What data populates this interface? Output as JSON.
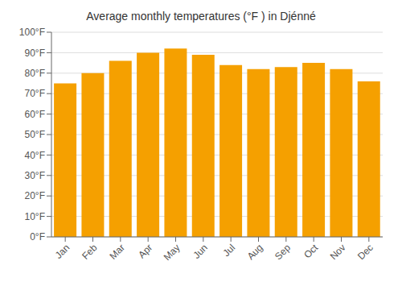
{
  "chart_data": {
    "type": "bar",
    "title": "Average monthly temperatures (°F ) in Djénné",
    "categories": [
      "Jan",
      "Feb",
      "Mar",
      "Apr",
      "May",
      "Jun",
      "Jul",
      "Aug",
      "Sep",
      "Oct",
      "Nov",
      "Dec"
    ],
    "values": [
      75,
      80,
      86,
      90,
      92,
      89,
      84,
      82,
      83,
      85,
      82,
      76
    ],
    "color": "#F5A000",
    "ylim": [
      0,
      100
    ],
    "yticks": [
      {
        "value": 0,
        "label": "0°F"
      },
      {
        "value": 10,
        "label": "10°F"
      },
      {
        "value": 20,
        "label": "20°F"
      },
      {
        "value": 30,
        "label": "30°F"
      },
      {
        "value": 40,
        "label": "40°F"
      },
      {
        "value": 50,
        "label": "50°F"
      },
      {
        "value": 60,
        "label": "60°F"
      },
      {
        "value": 70,
        "label": "70°F"
      },
      {
        "value": 80,
        "label": "80°F"
      },
      {
        "value": 90,
        "label": "90°F"
      },
      {
        "value": 100,
        "label": "100°F"
      }
    ],
    "grid": true
  }
}
